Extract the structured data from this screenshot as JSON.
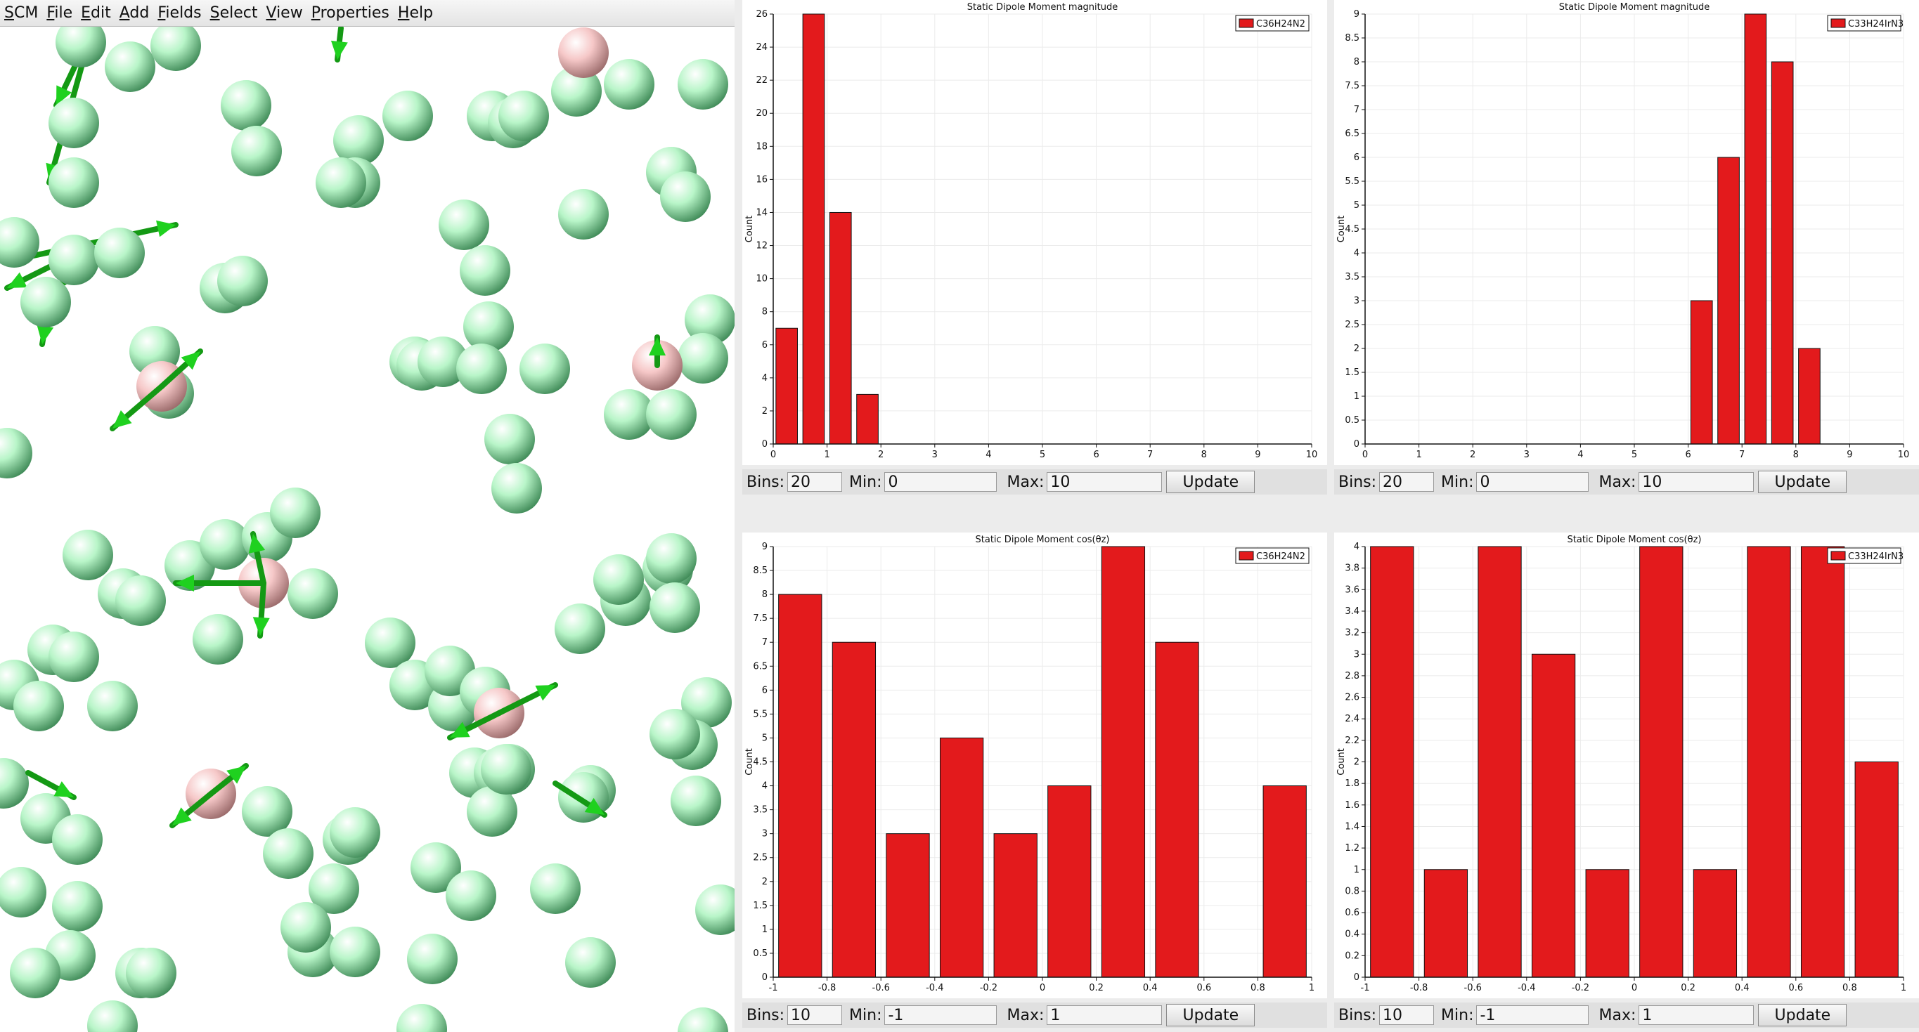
{
  "menubar": {
    "items": [
      "SCM",
      "File",
      "Edit",
      "Add",
      "Fields",
      "Select",
      "View",
      "Properties",
      "Help"
    ]
  },
  "viewer": {
    "molecule_colors": {
      "green": "#b8f5c8",
      "pink": "#f6c8c8",
      "arrow": "#1fd11f"
    }
  },
  "chart_data": [
    {
      "type": "bar",
      "title": "Static Dipole Moment magnitude",
      "ylabel": "Count",
      "xlabel": "",
      "legend": "C36H24N2",
      "color": "#e31a1c",
      "xlim": [
        0,
        10
      ],
      "ylim": [
        0,
        26
      ],
      "x_ticks": [
        0,
        1,
        2,
        3,
        4,
        5,
        6,
        7,
        8,
        9,
        10
      ],
      "y_ticks": [
        0,
        2,
        4,
        6,
        8,
        10,
        12,
        14,
        16,
        18,
        20,
        22,
        24,
        26
      ],
      "bars": [
        {
          "x0": 0,
          "x1": 0.5,
          "value": 7
        },
        {
          "x0": 0.5,
          "x1": 1,
          "value": 26
        },
        {
          "x0": 1,
          "x1": 1.5,
          "value": 14
        },
        {
          "x0": 1.5,
          "x1": 2,
          "value": 3
        }
      ],
      "controls": {
        "bins_label": "Bins:",
        "bins": "20",
        "min_label": "Min:",
        "min": "0",
        "max_label": "Max:",
        "max": "10",
        "update": "Update"
      }
    },
    {
      "type": "bar",
      "title": "Static Dipole Moment magnitude",
      "ylabel": "Count",
      "xlabel": "",
      "legend": "C33H24IrN3",
      "color": "#e31a1c",
      "xlim": [
        0,
        10
      ],
      "ylim": [
        0,
        9
      ],
      "x_ticks": [
        0,
        1,
        2,
        3,
        4,
        5,
        6,
        7,
        8,
        9,
        10
      ],
      "y_ticks": [
        0,
        0.5,
        1,
        1.5,
        2,
        2.5,
        3,
        3.5,
        4,
        4.5,
        5,
        5.5,
        6,
        6.5,
        7,
        7.5,
        8,
        8.5,
        9
      ],
      "bars": [
        {
          "x0": 6,
          "x1": 6.5,
          "value": 3
        },
        {
          "x0": 6.5,
          "x1": 7,
          "value": 6
        },
        {
          "x0": 7,
          "x1": 7.5,
          "value": 9
        },
        {
          "x0": 7.5,
          "x1": 8,
          "value": 8
        },
        {
          "x0": 8,
          "x1": 8.5,
          "value": 2
        }
      ],
      "controls": {
        "bins_label": "Bins:",
        "bins": "20",
        "min_label": "Min:",
        "min": "0",
        "max_label": "Max:",
        "max": "10",
        "update": "Update"
      }
    },
    {
      "type": "bar",
      "title": "Static Dipole Moment cos(θz)",
      "ylabel": "Count",
      "xlabel": "",
      "legend": "C36H24N2",
      "color": "#e31a1c",
      "xlim": [
        -1,
        1
      ],
      "ylim": [
        0,
        9
      ],
      "x_ticks": [
        -1,
        -0.8,
        -0.6,
        -0.4,
        -0.2,
        0,
        0.2,
        0.4,
        0.6,
        0.8,
        1
      ],
      "y_ticks": [
        0,
        0.5,
        1,
        1.5,
        2,
        2.5,
        3,
        3.5,
        4,
        4.5,
        5,
        5.5,
        6,
        6.5,
        7,
        7.5,
        8,
        8.5,
        9
      ],
      "bars": [
        {
          "x0": -1,
          "x1": -0.8,
          "value": 8
        },
        {
          "x0": -0.8,
          "x1": -0.6,
          "value": 7
        },
        {
          "x0": -0.6,
          "x1": -0.4,
          "value": 3
        },
        {
          "x0": -0.4,
          "x1": -0.2,
          "value": 5
        },
        {
          "x0": -0.2,
          "x1": 0,
          "value": 3
        },
        {
          "x0": 0,
          "x1": 0.2,
          "value": 4
        },
        {
          "x0": 0.2,
          "x1": 0.4,
          "value": 9
        },
        {
          "x0": 0.4,
          "x1": 0.6,
          "value": 7
        },
        {
          "x0": 0.6,
          "x1": 0.8,
          "value": 0
        },
        {
          "x0": 0.8,
          "x1": 1,
          "value": 4
        }
      ],
      "controls": {
        "bins_label": "Bins:",
        "bins": "10",
        "min_label": "Min:",
        "min": "-1",
        "max_label": "Max:",
        "max": "1",
        "update": "Update"
      }
    },
    {
      "type": "bar",
      "title": "Static Dipole Moment cos(θz)",
      "ylabel": "Count",
      "xlabel": "",
      "legend": "C33H24IrN3",
      "color": "#e31a1c",
      "xlim": [
        -1,
        1
      ],
      "ylim": [
        0,
        4
      ],
      "x_ticks": [
        -1,
        -0.8,
        -0.6,
        -0.4,
        -0.2,
        0,
        0.2,
        0.4,
        0.6,
        0.8,
        1
      ],
      "y_ticks": [
        0,
        0.2,
        0.4,
        0.6,
        0.8,
        1,
        1.2,
        1.4,
        1.6,
        1.8,
        2,
        2.2,
        2.4,
        2.6,
        2.8,
        3,
        3.2,
        3.4,
        3.6,
        3.8,
        4
      ],
      "bars": [
        {
          "x0": -1,
          "x1": -0.8,
          "value": 4
        },
        {
          "x0": -0.8,
          "x1": -0.6,
          "value": 1
        },
        {
          "x0": -0.6,
          "x1": -0.4,
          "value": 4
        },
        {
          "x0": -0.4,
          "x1": -0.2,
          "value": 3
        },
        {
          "x0": -0.2,
          "x1": 0,
          "value": 1
        },
        {
          "x0": 0,
          "x1": 0.2,
          "value": 4
        },
        {
          "x0": 0.2,
          "x1": 0.4,
          "value": 1
        },
        {
          "x0": 0.4,
          "x1": 0.6,
          "value": 4
        },
        {
          "x0": 0.6,
          "x1": 0.8,
          "value": 4
        },
        {
          "x0": 0.8,
          "x1": 1,
          "value": 2
        }
      ],
      "controls": {
        "bins_label": "Bins:",
        "bins": "10",
        "min_label": "Min:",
        "min": "-1",
        "max_label": "Max:",
        "max": "1",
        "update": "Update"
      }
    }
  ]
}
